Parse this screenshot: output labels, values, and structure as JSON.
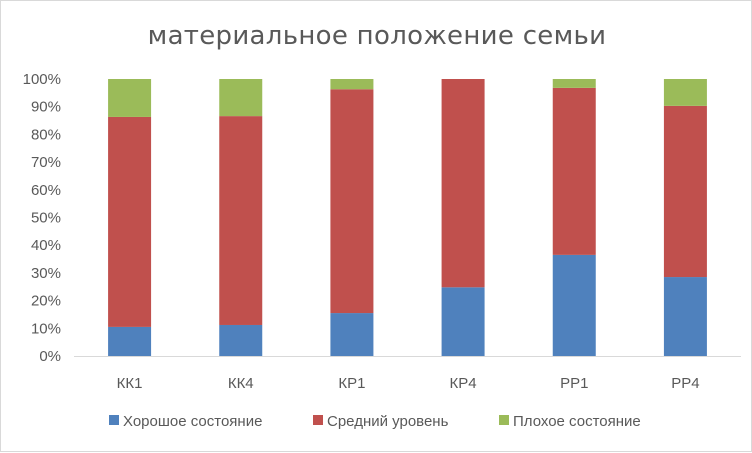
{
  "chart_data": {
    "type": "bar",
    "stacked": true,
    "percent": true,
    "title": "материальное положение семьи",
    "categories": [
      "КК1",
      "КК4",
      "КР1",
      "КР4",
      "РР1",
      "РР4"
    ],
    "series": [
      {
        "name": "Хорошое состояние",
        "color": "#4f81bd",
        "values": [
          10.5,
          11.2,
          15.5,
          24.8,
          36.5,
          28.5
        ]
      },
      {
        "name": "Средний уровень",
        "color": "#c0504d",
        "values": [
          75.8,
          75.4,
          80.8,
          75.2,
          60.3,
          61.8
        ]
      },
      {
        "name": "Плохое состояние",
        "color": "#9bbb59",
        "values": [
          13.7,
          13.4,
          3.7,
          0.0,
          3.2,
          9.7
        ]
      }
    ],
    "yticks": [
      "0%",
      "10%",
      "20%",
      "30%",
      "40%",
      "50%",
      "60%",
      "70%",
      "80%",
      "90%",
      "100%"
    ],
    "ylim": [
      0,
      100
    ],
    "grid": false,
    "legend": "bottom"
  }
}
